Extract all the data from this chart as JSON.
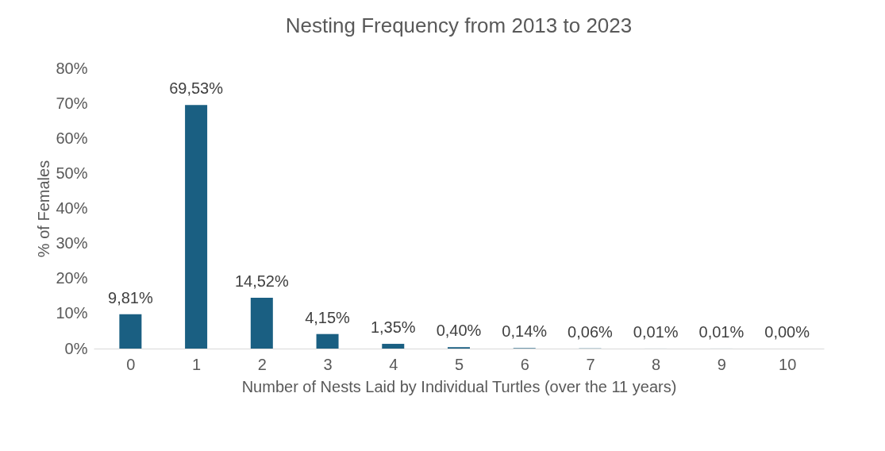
{
  "chart_data": {
    "type": "bar",
    "title": "Nesting Frequency from 2013 to 2023",
    "xlabel": "Number of Nests Laid by Individual Turtles (over the 11 years)",
    "ylabel": "% of Females",
    "categories": [
      "0",
      "1",
      "2",
      "3",
      "4",
      "5",
      "6",
      "7",
      "8",
      "9",
      "10"
    ],
    "values": [
      9.81,
      69.53,
      14.52,
      4.15,
      1.35,
      0.4,
      0.14,
      0.06,
      0.01,
      0.01,
      0.0
    ],
    "value_labels": [
      "9,81%",
      "69,53%",
      "14,52%",
      "4,15%",
      "1,35%",
      "0,40%",
      "0,14%",
      "0,06%",
      "0,01%",
      "0,01%",
      "0,00%"
    ],
    "color": "#1a5f82",
    "ylim": [
      0,
      80
    ],
    "yticks": [
      {
        "value": 0,
        "label": "0%"
      },
      {
        "value": 10,
        "label": "10%"
      },
      {
        "value": 20,
        "label": "20%"
      },
      {
        "value": 30,
        "label": "30%"
      },
      {
        "value": 40,
        "label": "40%"
      },
      {
        "value": 50,
        "label": "50%"
      },
      {
        "value": 60,
        "label": "60%"
      },
      {
        "value": 70,
        "label": "70%"
      },
      {
        "value": 80,
        "label": "80%"
      }
    ],
    "grid": false
  }
}
